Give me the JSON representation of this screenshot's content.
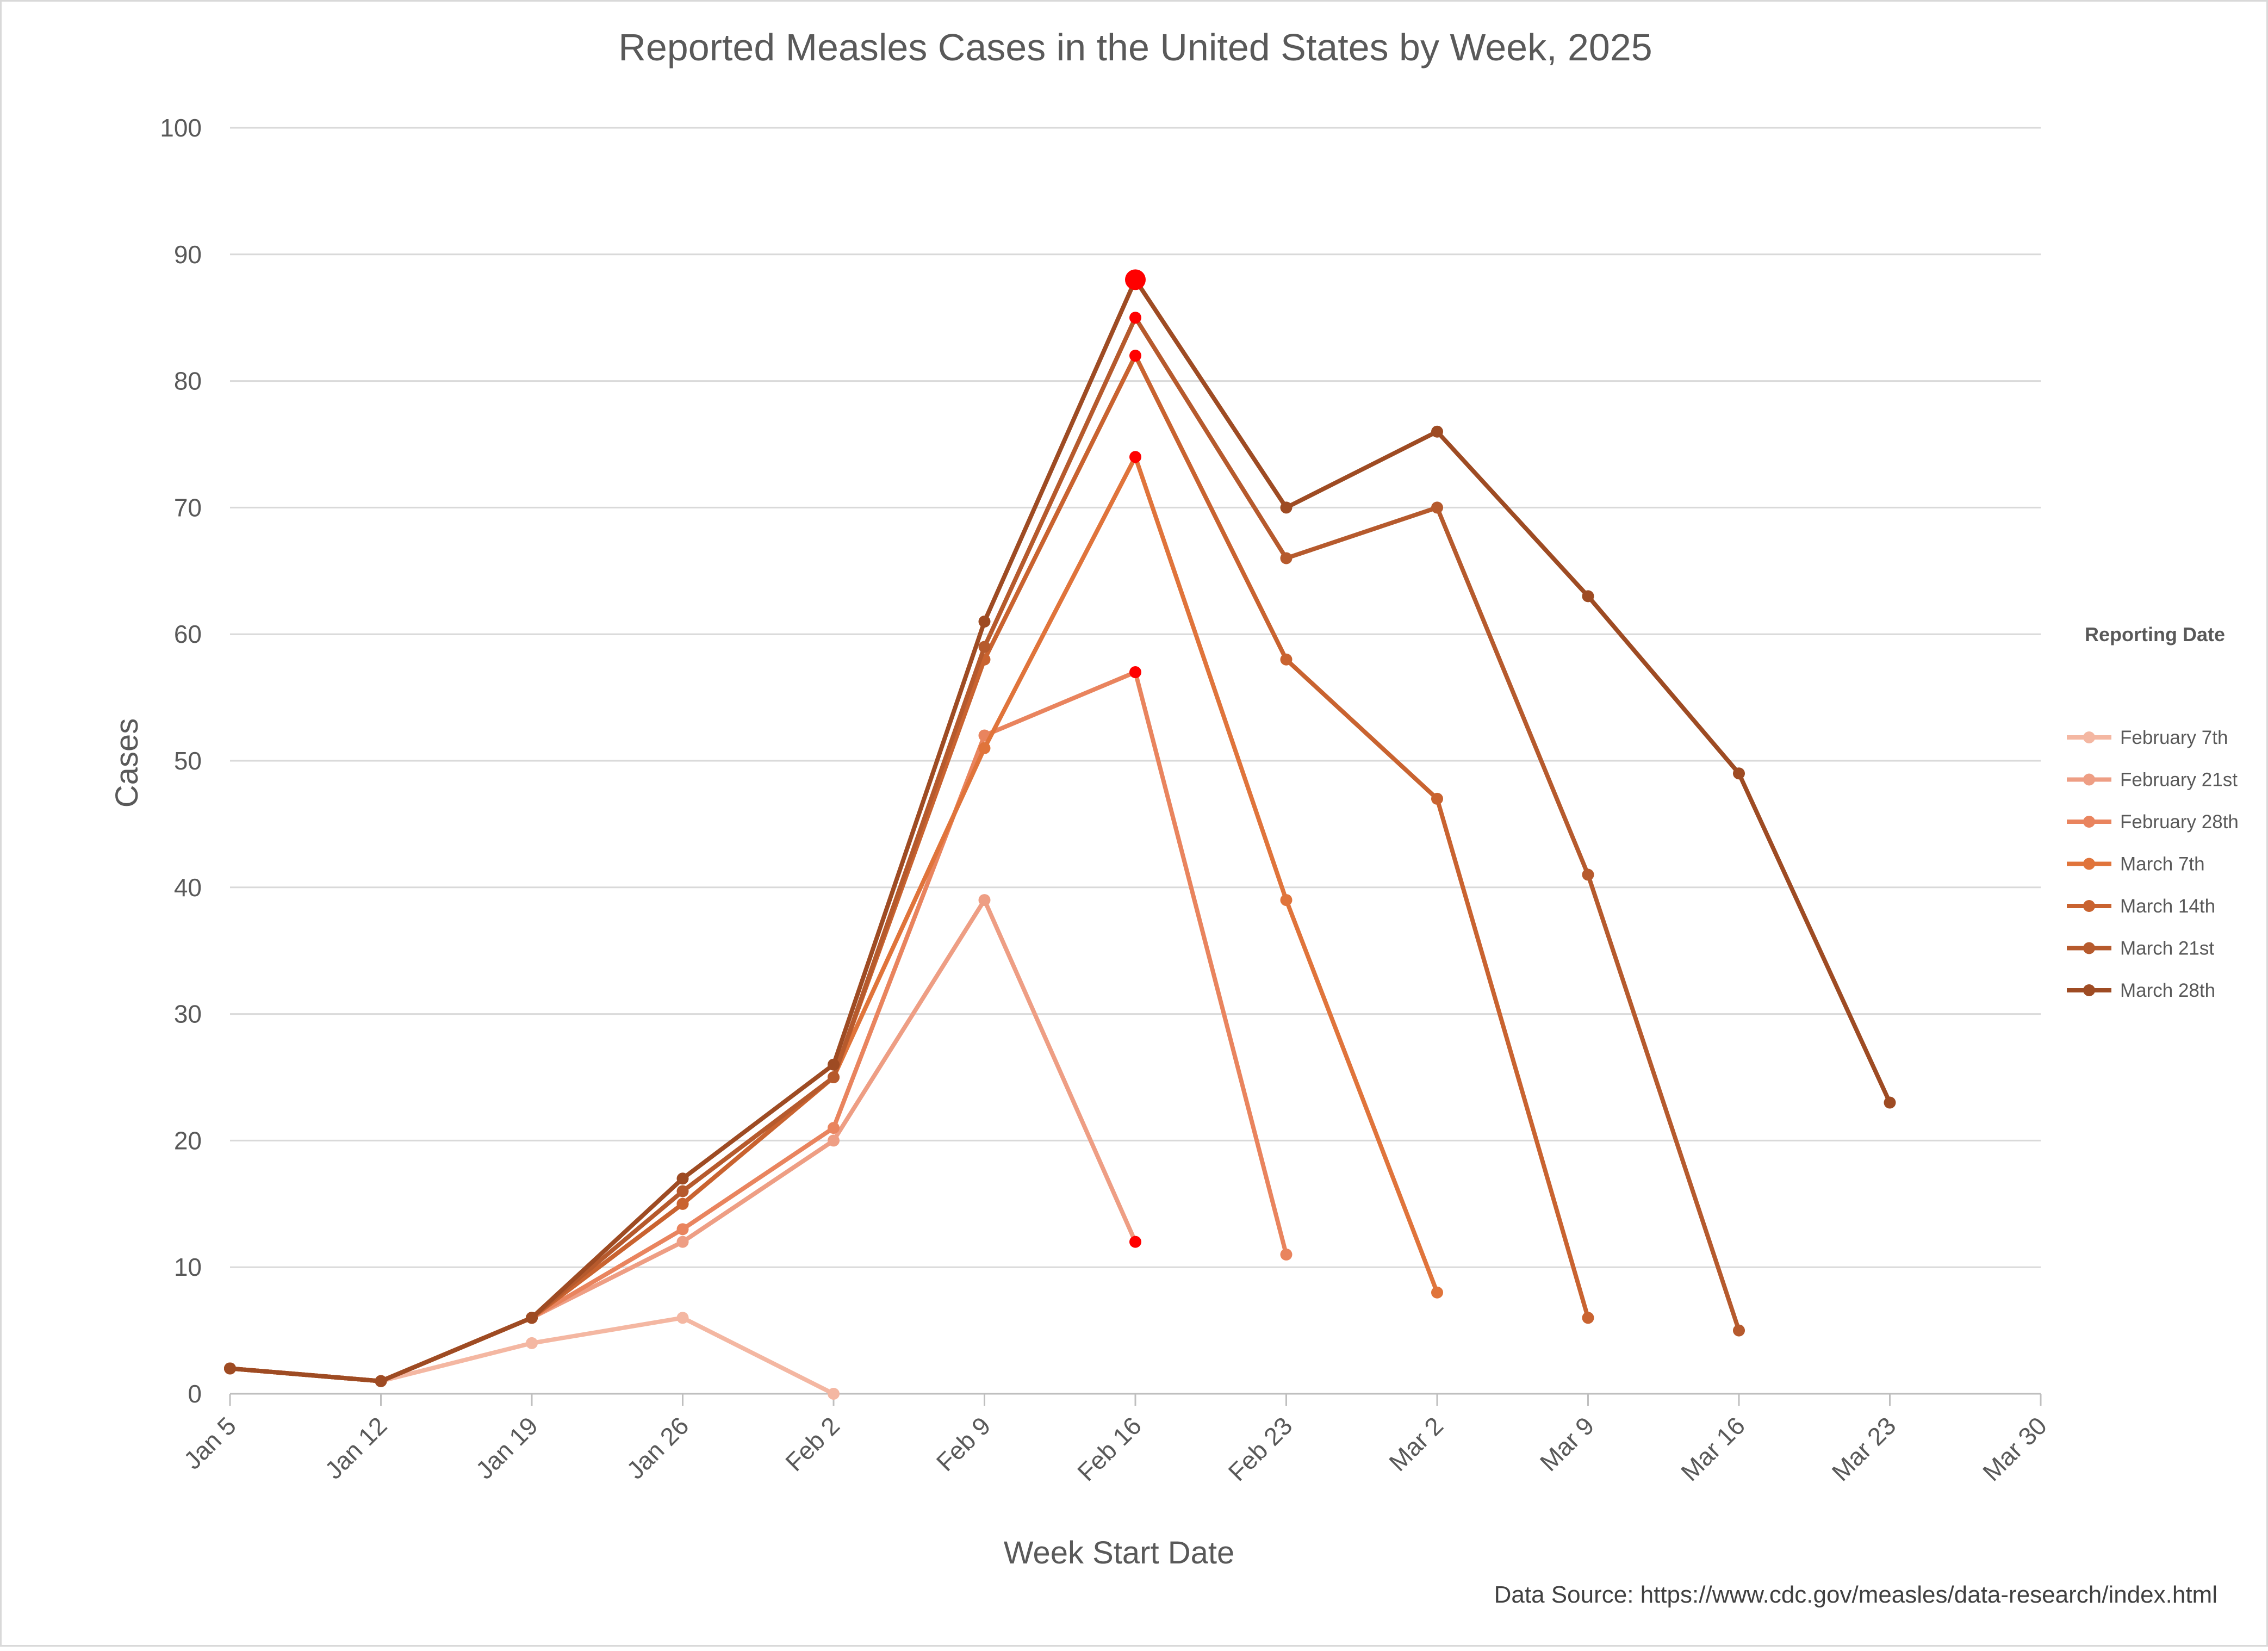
{
  "chart_data": {
    "type": "line",
    "title": "Reported Measles Cases in the United States by Week, 2025",
    "xlabel": "Week Start Date",
    "ylabel": "Cases",
    "ylim": [
      0,
      100
    ],
    "yticks": [
      0,
      10,
      20,
      30,
      40,
      50,
      60,
      70,
      80,
      90,
      100
    ],
    "categories": [
      "Jan 5",
      "Jan 12",
      "Jan 19",
      "Jan 26",
      "Feb 2",
      "Feb 9",
      "Feb 16",
      "Feb 23",
      "Mar 2",
      "Mar 9",
      "Mar 16",
      "Mar 23",
      "Mar 30"
    ],
    "grid": true,
    "legend": {
      "title": "Reporting Date",
      "placement": "right"
    },
    "series": [
      {
        "name": "February 7th",
        "color": "#F4B7A2",
        "values": [
          2,
          1,
          4,
          6,
          0,
          null,
          null,
          null,
          null,
          null,
          null,
          null,
          null
        ]
      },
      {
        "name": "February 21st",
        "color": "#EE9E84",
        "values": [
          2,
          1,
          6,
          12,
          20,
          39,
          12,
          null,
          null,
          null,
          null,
          null,
          null
        ]
      },
      {
        "name": "February 28th",
        "color": "#E9845E",
        "values": [
          2,
          1,
          6,
          13,
          21,
          52,
          57,
          11,
          null,
          null,
          null,
          null,
          null
        ]
      },
      {
        "name": "March 7th",
        "color": "#E0743B",
        "values": [
          2,
          1,
          6,
          15,
          25,
          51,
          74,
          39,
          8,
          null,
          null,
          null,
          null
        ]
      },
      {
        "name": "March 14th",
        "color": "#C96330",
        "values": [
          2,
          1,
          6,
          15,
          25,
          58,
          82,
          58,
          47,
          6,
          null,
          null,
          null
        ]
      },
      {
        "name": "March 21st",
        "color": "#B65A2D",
        "values": [
          2,
          1,
          6,
          16,
          25,
          59,
          85,
          66,
          70,
          41,
          5,
          null,
          null
        ]
      },
      {
        "name": "March 28th",
        "color": "#9E4B23",
        "values": [
          2,
          1,
          6,
          17,
          26,
          61,
          88,
          70,
          76,
          63,
          49,
          23,
          null
        ]
      }
    ],
    "highlight_color": "#FF0000",
    "highlight_category": "Feb 16",
    "source": "Data Source: https://www.cdc.gov/measles/data-research/index.html"
  }
}
